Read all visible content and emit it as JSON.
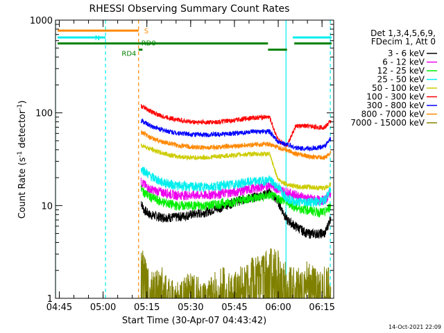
{
  "chart_data": {
    "type": "line",
    "title": "RHESSI Observing Summary Count Rates",
    "xlabel": "Start Time (30-Apr-07 04:43:42)",
    "ylabel": "Count Rate (s⁻¹ detector⁻¹)",
    "ylabel_parts": [
      "Count Rate (s",
      "-1",
      " detector",
      "-1",
      ")"
    ],
    "y_scale": "log",
    "ylim": [
      1,
      1000
    ],
    "y_ticks": [
      1,
      10,
      100,
      1000
    ],
    "y_tick_labels": [
      "1",
      "10",
      "100",
      "1000"
    ],
    "xlim": [
      "04:43:42",
      "06:19:00"
    ],
    "x_ticks": [
      "04:45",
      "05:00",
      "05:15",
      "05:30",
      "05:45",
      "06:00",
      "06:15"
    ],
    "legend": {
      "placement": "top-right",
      "header": [
        "Det 1,3,4,5,6,9,",
        "FDecim 1, Att 0"
      ]
    },
    "series": [
      {
        "name": "3 - 6 keV",
        "color": "#000000",
        "x": [
          "05:13",
          "05:14",
          "05:16",
          "05:20",
          "05:25",
          "05:30",
          "05:35",
          "05:40",
          "05:45",
          "05:50",
          "05:55",
          "05:57",
          "06:00",
          "06:03",
          "06:06",
          "06:10",
          "06:14",
          "06:16",
          "06:18"
        ],
        "y": [
          11,
          9,
          8,
          7.5,
          7.5,
          8,
          8.5,
          9.5,
          11,
          12,
          13,
          14,
          11,
          7,
          6,
          5,
          5,
          5,
          7.5
        ]
      },
      {
        "name": "6 - 12 keV",
        "color": "#ee00ee",
        "x": [
          "05:13",
          "05:14",
          "05:16",
          "05:20",
          "05:25",
          "05:30",
          "05:35",
          "05:40",
          "05:45",
          "05:50",
          "05:55",
          "05:57",
          "06:00",
          "06:03",
          "06:06",
          "06:10",
          "06:14",
          "06:16",
          "06:18"
        ],
        "y": [
          18,
          17,
          15,
          14,
          13,
          13,
          13,
          13.5,
          14,
          15,
          16,
          17,
          15,
          14,
          13,
          12,
          11.5,
          11.5,
          14
        ]
      },
      {
        "name": "12 - 25 keV",
        "color": "#00ee00",
        "x": [
          "05:13",
          "05:14",
          "05:16",
          "05:20",
          "05:25",
          "05:30",
          "05:35",
          "05:40",
          "05:45",
          "05:50",
          "05:55",
          "05:57",
          "06:00",
          "06:03",
          "06:06",
          "06:10",
          "06:14",
          "06:16",
          "06:18"
        ],
        "y": [
          15,
          14,
          12.5,
          11,
          10,
          10,
          10,
          10.5,
          11,
          12,
          12.5,
          13,
          12,
          11,
          9.5,
          9,
          8.5,
          8.5,
          10
        ]
      },
      {
        "name": "25 - 50 keV",
        "color": "#00eeee",
        "x": [
          "05:13",
          "05:14",
          "05:16",
          "05:20",
          "05:25",
          "05:30",
          "05:35",
          "05:40",
          "05:45",
          "05:50",
          "05:55",
          "05:57",
          "06:00",
          "06:03",
          "06:06",
          "06:10",
          "06:14",
          "06:16",
          "06:18"
        ],
        "y": [
          25,
          24,
          21,
          18,
          16.5,
          16,
          16,
          16.5,
          17,
          18,
          18.5,
          19,
          16,
          12,
          11,
          11,
          11,
          11.5,
          15
        ]
      },
      {
        "name": "50 - 100 keV",
        "color": "#cccc00",
        "x": [
          "05:13",
          "05:14",
          "05:16",
          "05:20",
          "05:25",
          "05:30",
          "05:35",
          "05:40",
          "05:45",
          "05:50",
          "05:55",
          "05:57",
          "06:00",
          "06:03",
          "06:06",
          "06:10",
          "06:14",
          "06:16",
          "06:18"
        ],
        "y": [
          45,
          44,
          41,
          37,
          34,
          33,
          33,
          34,
          35,
          36,
          36,
          36,
          19,
          17,
          16,
          16,
          15.5,
          15.5,
          17
        ]
      },
      {
        "name": "100 - 300 keV",
        "color": "#ff0000",
        "x": [
          "05:13",
          "05:14",
          "05:16",
          "05:20",
          "05:25",
          "05:30",
          "05:35",
          "05:40",
          "05:45",
          "05:50",
          "05:55",
          "05:57",
          "06:00",
          "06:03",
          "06:06",
          "06:10",
          "06:14",
          "06:16",
          "06:18"
        ],
        "y": [
          118,
          115,
          105,
          92,
          85,
          80,
          79,
          80,
          83,
          88,
          90,
          90,
          50,
          45,
          72,
          72,
          70,
          70,
          82
        ]
      },
      {
        "name": "300 - 800 keV",
        "color": "#0000ff",
        "x": [
          "05:13",
          "05:14",
          "05:16",
          "05:20",
          "05:25",
          "05:30",
          "05:35",
          "05:40",
          "05:45",
          "05:50",
          "05:55",
          "05:57",
          "06:00",
          "06:03",
          "06:06",
          "06:10",
          "06:14",
          "06:16",
          "06:18"
        ],
        "y": [
          82,
          80,
          73,
          66,
          61,
          59,
          58,
          59,
          60,
          62,
          63,
          63,
          48,
          46,
          42,
          41,
          42,
          44,
          53
        ]
      },
      {
        "name": "800 - 7000 keV",
        "color": "#ff8800",
        "x": [
          "05:13",
          "05:14",
          "05:16",
          "05:20",
          "05:25",
          "05:30",
          "05:35",
          "05:40",
          "05:45",
          "05:50",
          "05:55",
          "05:57",
          "06:00",
          "06:03",
          "06:06",
          "06:10",
          "06:14",
          "06:16",
          "06:18"
        ],
        "y": [
          62,
          60,
          54,
          49,
          45,
          43,
          42,
          43,
          44,
          45,
          46,
          46,
          42,
          40,
          36,
          34,
          33,
          33,
          37
        ]
      },
      {
        "name": "7000 - 15000 keV",
        "color": "#808000",
        "x": [
          "05:13",
          "05:14",
          "05:16",
          "05:20",
          "05:25",
          "05:30",
          "05:35",
          "05:40",
          "05:45",
          "05:50",
          "05:55",
          "05:57",
          "06:00",
          "06:03",
          "06:06",
          "06:10",
          "06:14",
          "06:16",
          "06:18"
        ],
        "y": [
          2.5,
          2,
          1.3,
          1.5,
          1,
          1.3,
          1,
          1.5,
          1.3,
          1.8,
          2.2,
          2.6,
          2.2,
          1.6,
          1.4,
          1.7,
          1.3,
          1.6,
          1.4
        ]
      }
    ],
    "state_bars": [
      {
        "label": "S",
        "color": "#ff8800",
        "y": 770,
        "segments": [
          [
            "04:43:42",
            "05:12:10"
          ]
        ]
      },
      {
        "label": "N",
        "color": "#00eeee",
        "y": 650,
        "segments": [
          [
            "04:43:42",
            "05:00:50"
          ],
          [
            "06:05:00",
            "06:18:40"
          ]
        ]
      },
      {
        "label": "RD0",
        "color": "#008000",
        "y": 560,
        "segments": [
          [
            "04:43:42",
            "05:56:30"
          ],
          [
            "06:05:30",
            "06:18:40"
          ]
        ]
      },
      {
        "label": "RD4",
        "color": "#008000",
        "y": 480,
        "segments": [
          [
            "05:12:10",
            "05:13:30"
          ],
          [
            "05:56:30",
            "06:03:00"
          ]
        ]
      }
    ],
    "vertical_lines": [
      {
        "time": "04:43:42",
        "color": "#00eeee",
        "style": "solid"
      },
      {
        "time": "05:00:50",
        "color": "#00eeee",
        "style": "dashed"
      },
      {
        "time": "05:12:10",
        "color": "#ff8800",
        "style": "dashed"
      },
      {
        "time": "06:02:40",
        "color": "#00eeee",
        "style": "solid"
      },
      {
        "time": "06:17:50",
        "color": "#00eeee",
        "style": "dashed"
      }
    ]
  },
  "footer": {
    "timestamp": "14-Oct-2021 22:09"
  }
}
